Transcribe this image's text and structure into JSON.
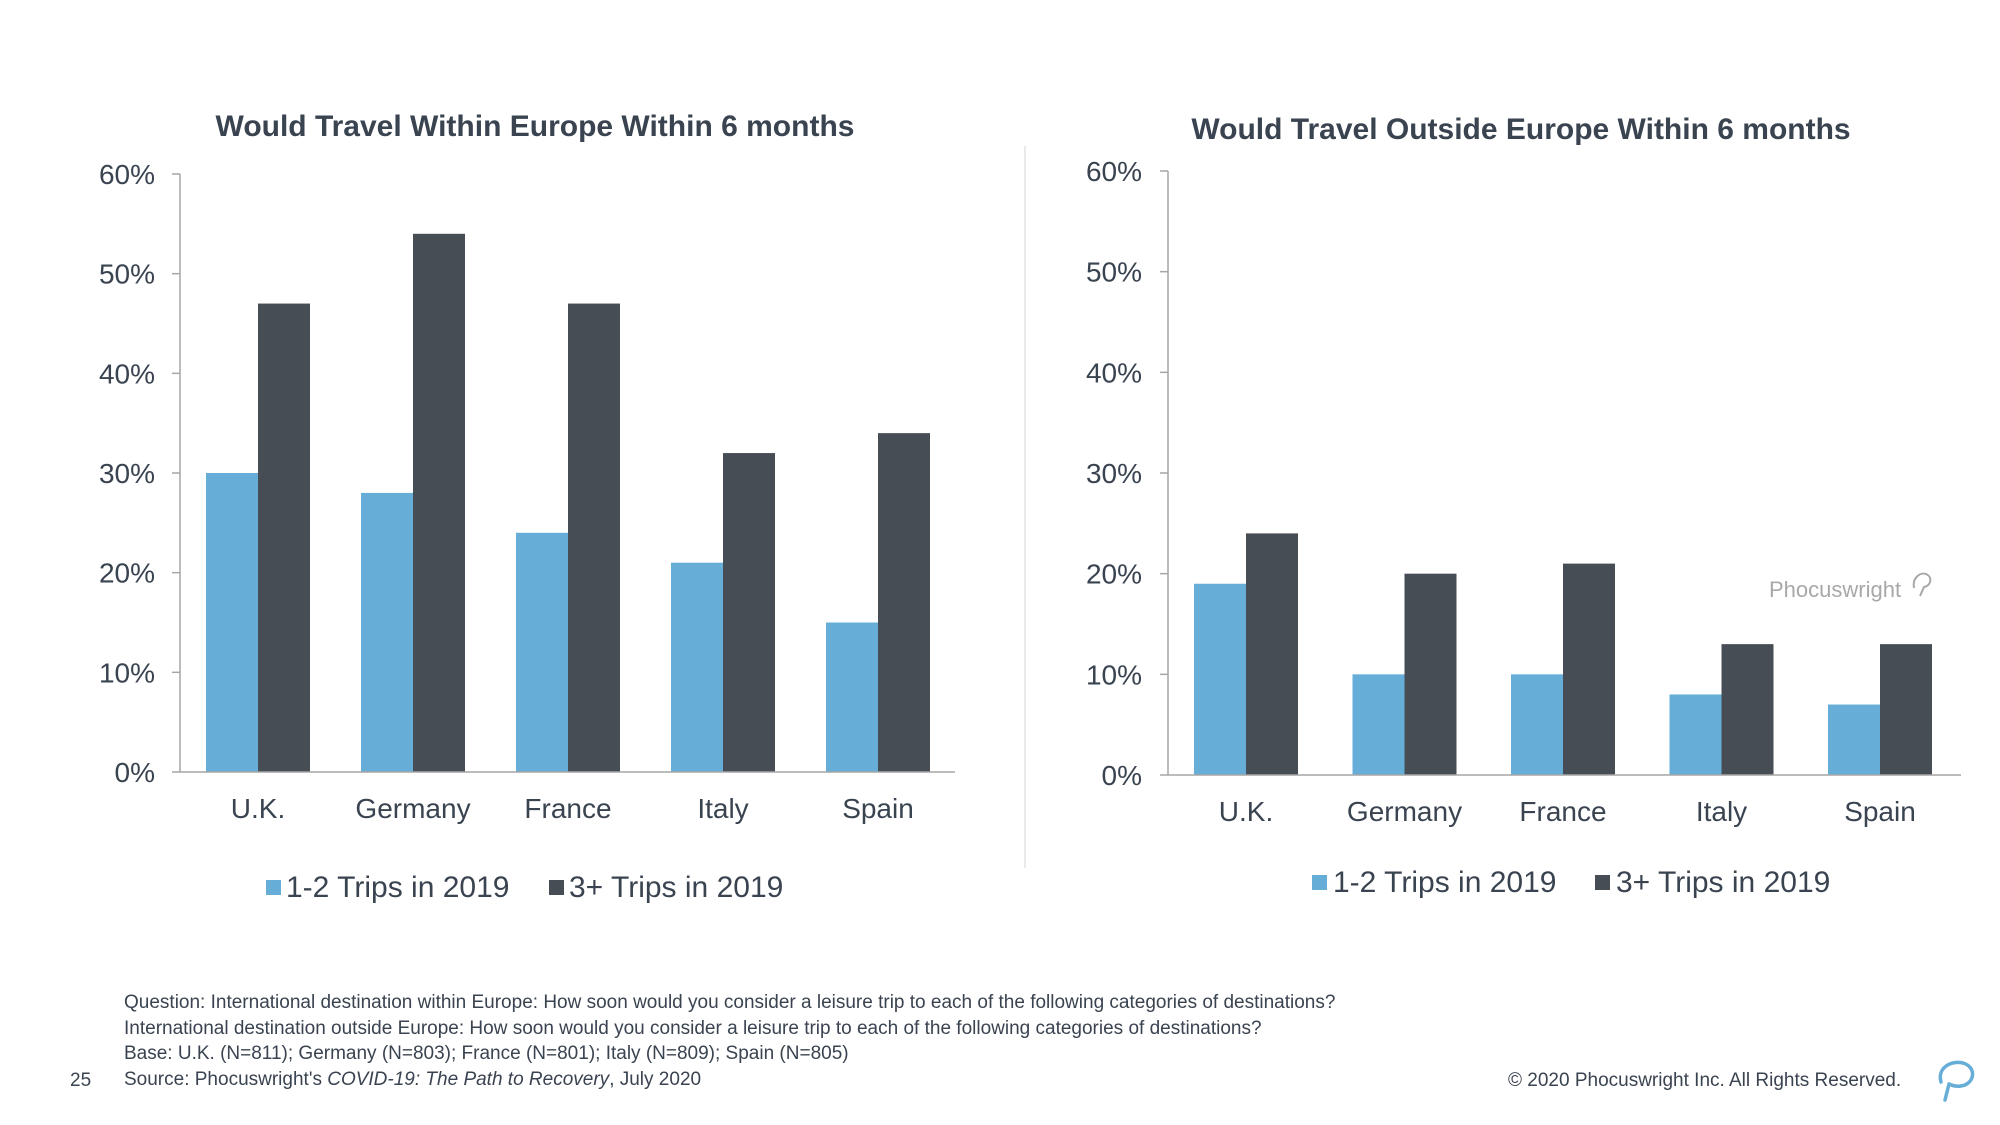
{
  "colors": {
    "series_light": "#66AED8",
    "series_dark": "#474D55",
    "text": "#3A4350",
    "axis": "#A6A6A6"
  },
  "chart_data": [
    {
      "type": "bar",
      "title": "Would Travel Within Europe Within 6 months",
      "categories": [
        "U.K.",
        "Germany",
        "France",
        "Italy",
        "Spain"
      ],
      "series": [
        {
          "name": "1-2 Trips in 2019",
          "values": [
            30,
            28,
            24,
            21,
            15
          ]
        },
        {
          "name": "3+ Trips in 2019",
          "values": [
            47,
            54,
            47,
            32,
            34
          ]
        }
      ],
      "ylim": [
        0,
        60
      ],
      "yticks": [
        "0%",
        "10%",
        "20%",
        "30%",
        "40%",
        "50%",
        "60%"
      ],
      "grid": false,
      "legend": "bottom"
    },
    {
      "type": "bar",
      "title": "Would Travel Outside Europe Within 6 months",
      "categories": [
        "U.K.",
        "Germany",
        "France",
        "Italy",
        "Spain"
      ],
      "series": [
        {
          "name": "1-2 Trips in 2019",
          "values": [
            19,
            10,
            10,
            8,
            7
          ]
        },
        {
          "name": "3+ Trips in 2019",
          "values": [
            24,
            20,
            21,
            13,
            13
          ]
        }
      ],
      "ylim": [
        0,
        60
      ],
      "yticks": [
        "0%",
        "10%",
        "20%",
        "30%",
        "40%",
        "50%",
        "60%"
      ],
      "grid": false,
      "legend": "bottom",
      "watermark": "Phocuswright"
    }
  ],
  "footer": {
    "question_line1": "Question: International destination within Europe: How soon would you consider a leisure trip to each of the following categories of destinations?",
    "question_line2": "International destination outside Europe: How soon would you consider a leisure trip to each of the following categories of destinations?",
    "base": "Base: U.K. (N=811); Germany (N=803); France (N=801); Italy (N=809); Spain (N=805)",
    "source_prefix": "Source: Phocuswright's ",
    "source_title": "COVID-19: The Path to Recovery",
    "source_suffix": ", July 2020",
    "page_number": "25",
    "copyright": "© 2020 Phocuswright Inc. All Rights Reserved."
  },
  "brand_icon": "phocuswright-logo-icon"
}
